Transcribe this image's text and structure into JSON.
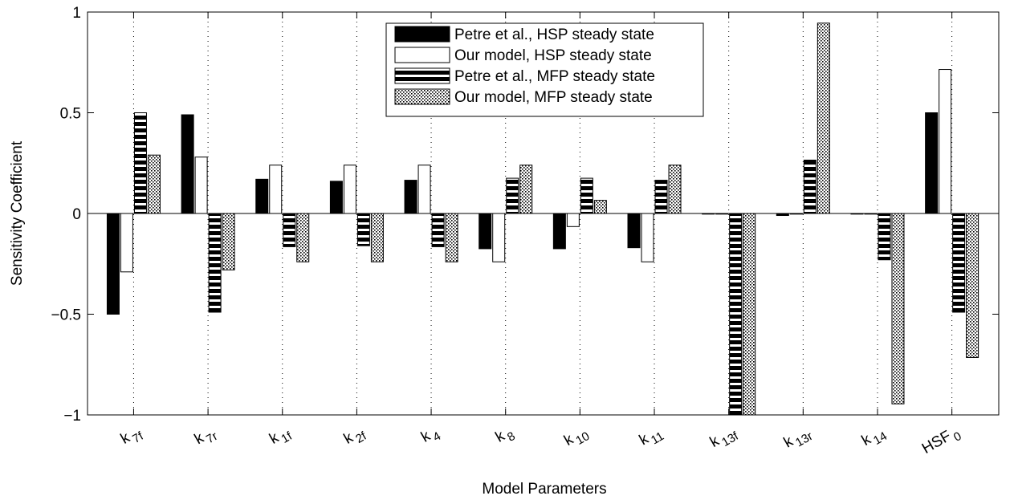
{
  "chart_data": {
    "type": "bar",
    "title": "",
    "xlabel": "Model Parameters",
    "ylabel": "Sensitivity Coefficient",
    "ylim": [
      -1,
      1
    ],
    "yticks": [
      -1,
      -0.5,
      0,
      0.5,
      1
    ],
    "ytick_labels": [
      "−1",
      "−0.5",
      "0",
      "0.5",
      "1"
    ],
    "grid": "x-dotted",
    "legend_position": "top-center",
    "categories": [
      "k_7f",
      "k_7r",
      "k_1f",
      "k_2f",
      "k_4",
      "k_8",
      "k_10",
      "k_11",
      "k_13f",
      "k_13r",
      "k_14",
      "HSF_0"
    ],
    "category_labels": [
      {
        "base": "k",
        "sub": "7f"
      },
      {
        "base": "k",
        "sub": "7r"
      },
      {
        "base": "k",
        "sub": "1f"
      },
      {
        "base": "k",
        "sub": "2f"
      },
      {
        "base": "k",
        "sub": "4"
      },
      {
        "base": "k",
        "sub": "8"
      },
      {
        "base": "k",
        "sub": "10"
      },
      {
        "base": "k",
        "sub": "11"
      },
      {
        "base": "k",
        "sub": "13f"
      },
      {
        "base": "k",
        "sub": "13r"
      },
      {
        "base": "k",
        "sub": "14"
      },
      {
        "base": "HSF",
        "sub": "0"
      }
    ],
    "series": [
      {
        "name": "Petre et al., HSP steady state",
        "pattern": "solid-black",
        "values": [
          -0.5,
          0.49,
          0.17,
          0.16,
          0.165,
          -0.175,
          -0.175,
          -0.17,
          -0.003,
          -0.01,
          -0.003,
          0.5
        ]
      },
      {
        "name": "Our model, HSP steady state",
        "pattern": "white",
        "values": [
          -0.29,
          0.28,
          0.24,
          0.24,
          0.24,
          -0.24,
          -0.065,
          -0.24,
          0.0,
          0.0,
          0.0,
          0.715
        ]
      },
      {
        "name": "Petre et al., MFP steady state",
        "pattern": "horizontal-stripes",
        "values": [
          0.5,
          -0.49,
          -0.165,
          -0.16,
          -0.165,
          0.175,
          0.175,
          0.165,
          -1.0,
          0.265,
          -0.23,
          -0.49
        ]
      },
      {
        "name": "Our model, MFP steady state",
        "pattern": "dotted",
        "values": [
          0.29,
          -0.28,
          -0.24,
          -0.24,
          -0.24,
          0.24,
          0.065,
          0.24,
          -1.0,
          0.945,
          -0.945,
          -0.715
        ]
      }
    ]
  }
}
